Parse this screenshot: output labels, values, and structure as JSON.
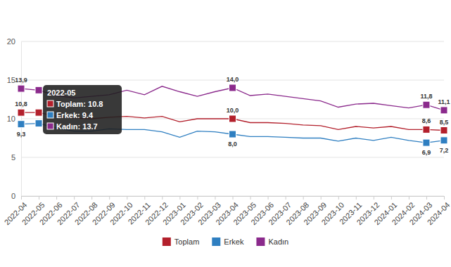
{
  "chart_data": {
    "type": "line",
    "categories": [
      "2022-04",
      "2022-05",
      "2022-06",
      "2022-07",
      "2022-08",
      "2022-09",
      "2022-10",
      "2022-11",
      "2022-12",
      "2023-01",
      "2023-02",
      "2023-03",
      "2023-04",
      "2023-05",
      "2023-06",
      "2023-07",
      "2023-08",
      "2023-09",
      "2023-10",
      "2023-11",
      "2023-12",
      "2024-01",
      "2024-02",
      "2024-03",
      "2024-04"
    ],
    "series": [
      {
        "name": "Toplam",
        "color": "#b3202c",
        "values": [
          10.8,
          10.8,
          10.3,
          10.1,
          10.0,
          10.2,
          10.3,
          10.1,
          10.3,
          9.6,
          10.0,
          10.0,
          10.0,
          9.5,
          9.5,
          9.4,
          9.2,
          9.1,
          8.6,
          9.0,
          8.8,
          9.0,
          8.6,
          8.6,
          8.5
        ],
        "value_labels": [
          "10,8",
          null,
          null,
          null,
          null,
          null,
          null,
          null,
          null,
          null,
          null,
          null,
          "10,0",
          null,
          null,
          null,
          null,
          null,
          null,
          null,
          null,
          null,
          null,
          "8,6",
          "8,5"
        ]
      },
      {
        "name": "Erkek",
        "color": "#2f7fc1",
        "values": [
          9.3,
          9.4,
          8.8,
          8.4,
          8.4,
          8.7,
          8.6,
          8.6,
          8.3,
          7.6,
          8.4,
          8.3,
          8.0,
          7.7,
          7.7,
          7.6,
          7.5,
          7.5,
          7.1,
          7.5,
          7.2,
          7.6,
          7.2,
          6.9,
          7.2
        ],
        "value_labels": [
          "9,3",
          null,
          null,
          null,
          null,
          null,
          null,
          null,
          null,
          null,
          null,
          null,
          "8,0",
          null,
          null,
          null,
          null,
          null,
          null,
          null,
          null,
          null,
          null,
          "6,9",
          "7,2"
        ]
      },
      {
        "name": "Kadın",
        "color": "#8b2a8c",
        "values": [
          13.9,
          13.7,
          13.0,
          12.7,
          12.9,
          13.1,
          13.7,
          13.1,
          14.2,
          13.5,
          12.9,
          13.5,
          14.0,
          13.0,
          13.2,
          12.9,
          12.6,
          12.3,
          11.5,
          11.9,
          12.0,
          11.7,
          11.4,
          11.8,
          11.1
        ],
        "value_labels": [
          "13,9",
          null,
          null,
          null,
          null,
          null,
          null,
          null,
          null,
          null,
          null,
          null,
          "14,0",
          null,
          null,
          null,
          null,
          null,
          null,
          null,
          null,
          null,
          null,
          "11,8",
          "11,1"
        ]
      }
    ],
    "ylim": [
      0,
      20
    ],
    "yticks": [
      0,
      5,
      10,
      15,
      20
    ],
    "grid": true,
    "marker": "square",
    "legend": "bottom",
    "annotations": [
      {
        "x": "2022-05",
        "title": "2022-05",
        "lines": [
          "Toplam: 10.8",
          "Erkek: 9.4",
          "Kadın: 13.7"
        ]
      }
    ]
  }
}
